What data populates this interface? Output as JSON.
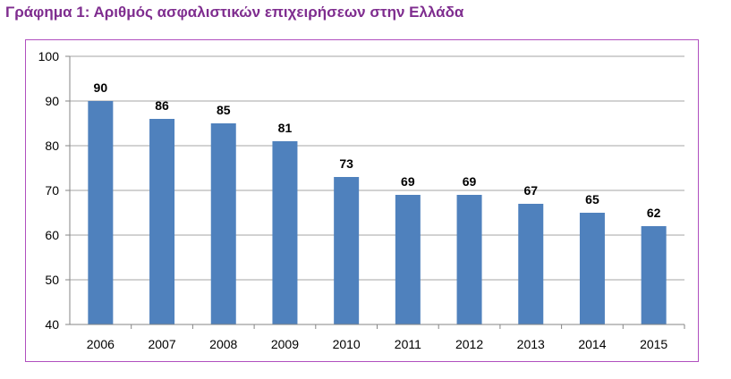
{
  "title": "Γράφημα 1: Αριθμός ασφαλιστικών επιχειρήσεων στην Ελλάδα",
  "colors": {
    "bar": "#4f81bd",
    "title": "#7f2d8f",
    "frame": "#b04fbf",
    "grid": "#a6a6a6"
  },
  "chart_data": {
    "type": "bar",
    "title": "Γράφημα 1: Αριθμός ασφαλιστικών επιχειρήσεων στην Ελλάδα",
    "xlabel": "",
    "ylabel": "",
    "categories": [
      "2006",
      "2007",
      "2008",
      "2009",
      "2010",
      "2011",
      "2012",
      "2013",
      "2014",
      "2015"
    ],
    "values": [
      90,
      86,
      85,
      81,
      73,
      69,
      69,
      67,
      65,
      62
    ],
    "ylim": [
      40,
      100
    ],
    "yticks": [
      40,
      50,
      60,
      70,
      80,
      90,
      100
    ],
    "grid": true,
    "legend": "none",
    "data_labels": true
  }
}
